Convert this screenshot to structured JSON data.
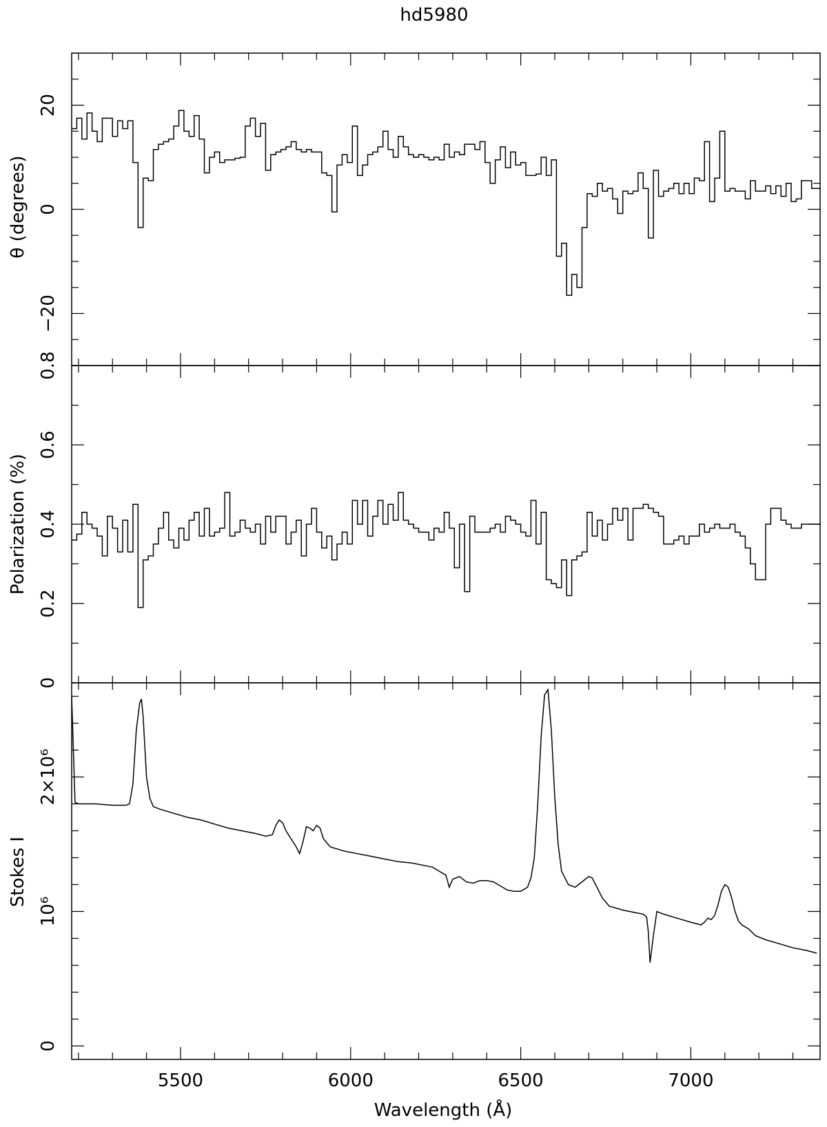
{
  "chart_data": {
    "type": "line",
    "title": "hd5980",
    "xlabel": "Wavelength (Å)",
    "xlim": [
      5180,
      7380
    ],
    "x_ticks": [
      5500,
      6000,
      6500,
      7000
    ],
    "x_tick_labels": [
      "5500",
      "6000",
      "6500",
      "7000"
    ],
    "panels": [
      {
        "name": "theta",
        "type": "step",
        "ylabel": "θ (degrees)",
        "ylim": [
          -30,
          30
        ],
        "y_ticks": [
          -20,
          0,
          20
        ],
        "y_tick_labels": [
          "−20",
          "0",
          "20"
        ],
        "series": [
          {
            "x": [
              5180,
              5195,
              5210,
              5225,
              5240,
              5255,
              5270,
              5285,
              5300,
              5315,
              5330,
              5345,
              5360,
              5375,
              5390,
              5405,
              5420,
              5435,
              5450,
              5465,
              5480,
              5495,
              5510,
              5525,
              5540,
              5555,
              5570,
              5585,
              5600,
              5615,
              5630,
              5645,
              5660,
              5675,
              5690,
              5705,
              5720,
              5735,
              5750,
              5765,
              5780,
              5795,
              5810,
              5825,
              5840,
              5855,
              5870,
              5885,
              5900,
              5915,
              5930,
              5945,
              5960,
              5975,
              5990,
              6005,
              6020,
              6035,
              6050,
              6065,
              6080,
              6095,
              6110,
              6125,
              6140,
              6155,
              6170,
              6185,
              6200,
              6215,
              6230,
              6245,
              6260,
              6275,
              6290,
              6305,
              6320,
              6335,
              6350,
              6365,
              6380,
              6395,
              6410,
              6425,
              6440,
              6455,
              6470,
              6485,
              6500,
              6515,
              6530,
              6545,
              6560,
              6575,
              6590,
              6605,
              6620,
              6635,
              6650,
              6665,
              6680,
              6695,
              6710,
              6725,
              6740,
              6755,
              6770,
              6785,
              6800,
              6815,
              6830,
              6845,
              6860,
              6875,
              6890,
              6905,
              6920,
              6935,
              6950,
              6965,
              6980,
              6995,
              7010,
              7025,
              7040,
              7055,
              7070,
              7085,
              7100,
              7115,
              7130,
              7145,
              7160,
              7175,
              7190,
              7205,
              7220,
              7235,
              7250,
              7265,
              7280,
              7295,
              7310,
              7325,
              7340,
              7355,
              7370
            ],
            "y": [
              15.5,
              17.5,
              13.5,
              18.5,
              15,
              13,
              17.5,
              17.5,
              14,
              17,
              15.5,
              17,
              9,
              -3.5,
              6,
              5.5,
              11.5,
              12.5,
              13,
              13.5,
              16,
              19,
              15,
              14,
              18,
              13.5,
              7,
              10,
              11,
              9,
              9.5,
              9.5,
              9.8,
              10,
              16,
              17.5,
              14,
              16.5,
              7.5,
              10.5,
              11,
              11.5,
              12,
              13,
              11.5,
              11,
              11.5,
              11,
              11,
              7,
              6.5,
              -0.5,
              8.5,
              10.5,
              9,
              16,
              6.5,
              8.5,
              10.5,
              11,
              12,
              15,
              11.5,
              10,
              14,
              12,
              10.5,
              10,
              10.5,
              10,
              9.5,
              10,
              9.5,
              12.5,
              10,
              11,
              10.5,
              12.5,
              12.5,
              11.5,
              13,
              9,
              5,
              9.5,
              12,
              8,
              11,
              8.5,
              9,
              6.5,
              6.5,
              6.8,
              10,
              6.5,
              9.5,
              -9,
              -6.5,
              -16.5,
              -12.5,
              -15,
              -3.5,
              3,
              2.5,
              5,
              3.5,
              4,
              2,
              -0.8,
              3.5,
              3,
              3.5,
              7,
              4,
              -5.5,
              7.5,
              2.5,
              3.5,
              4,
              5,
              3,
              5,
              3,
              6,
              5.5,
              13,
              1.5,
              6,
              15,
              3.5,
              4,
              3.5,
              3.5,
              2,
              5.5,
              3.5,
              3.5,
              4.5,
              3,
              4.5,
              2.5,
              5,
              1.5,
              2,
              5.5,
              5.5,
              4,
              4
            ]
          }
        ]
      },
      {
        "name": "polarization",
        "type": "step",
        "ylabel": "Polarization (%)",
        "ylim": [
          0,
          0.8
        ],
        "y_ticks": [
          0,
          0.2,
          0.4,
          0.6,
          0.8
        ],
        "y_tick_labels": [
          "0",
          "0.2",
          "0.4",
          "0.6",
          "0.8"
        ],
        "series": [
          {
            "x": [
              5180,
              5195,
              5210,
              5225,
              5240,
              5255,
              5270,
              5285,
              5300,
              5315,
              5330,
              5345,
              5360,
              5375,
              5390,
              5405,
              5420,
              5435,
              5450,
              5465,
              5480,
              5495,
              5510,
              5525,
              5540,
              5555,
              5570,
              5585,
              5600,
              5615,
              5630,
              5645,
              5660,
              5675,
              5690,
              5705,
              5720,
              5735,
              5750,
              5765,
              5780,
              5795,
              5810,
              5825,
              5840,
              5855,
              5870,
              5885,
              5900,
              5915,
              5930,
              5945,
              5960,
              5975,
              5990,
              6005,
              6020,
              6035,
              6050,
              6065,
              6080,
              6095,
              6110,
              6125,
              6140,
              6155,
              6170,
              6185,
              6200,
              6215,
              6230,
              6245,
              6260,
              6275,
              6290,
              6305,
              6320,
              6335,
              6350,
              6365,
              6380,
              6395,
              6410,
              6425,
              6440,
              6455,
              6470,
              6485,
              6500,
              6515,
              6530,
              6545,
              6560,
              6575,
              6590,
              6605,
              6620,
              6635,
              6650,
              6665,
              6680,
              6695,
              6710,
              6725,
              6740,
              6755,
              6770,
              6785,
              6800,
              6815,
              6830,
              6845,
              6860,
              6875,
              6890,
              6905,
              6920,
              6935,
              6950,
              6965,
              6980,
              6995,
              7010,
              7025,
              7040,
              7055,
              7070,
              7085,
              7100,
              7115,
              7130,
              7145,
              7160,
              7175,
              7190,
              7205,
              7220,
              7235,
              7250,
              7265,
              7280,
              7295,
              7310,
              7325,
              7340,
              7355,
              7370
            ],
            "y": [
              0.36,
              0.375,
              0.43,
              0.4,
              0.39,
              0.37,
              0.32,
              0.42,
              0.39,
              0.33,
              0.41,
              0.33,
              0.45,
              0.19,
              0.31,
              0.32,
              0.35,
              0.39,
              0.43,
              0.36,
              0.34,
              0.39,
              0.36,
              0.41,
              0.43,
              0.37,
              0.44,
              0.37,
              0.38,
              0.39,
              0.48,
              0.37,
              0.38,
              0.41,
              0.39,
              0.38,
              0.4,
              0.35,
              0.42,
              0.38,
              0.42,
              0.42,
              0.35,
              0.38,
              0.41,
              0.32,
              0.4,
              0.44,
              0.38,
              0.34,
              0.37,
              0.31,
              0.35,
              0.38,
              0.35,
              0.46,
              0.4,
              0.46,
              0.37,
              0.42,
              0.46,
              0.4,
              0.45,
              0.41,
              0.48,
              0.41,
              0.4,
              0.39,
              0.38,
              0.38,
              0.36,
              0.39,
              0.38,
              0.43,
              0.39,
              0.29,
              0.4,
              0.23,
              0.42,
              0.38,
              0.38,
              0.38,
              0.39,
              0.4,
              0.38,
              0.42,
              0.41,
              0.4,
              0.38,
              0.37,
              0.46,
              0.35,
              0.43,
              0.26,
              0.25,
              0.24,
              0.31,
              0.22,
              0.31,
              0.32,
              0.33,
              0.43,
              0.37,
              0.41,
              0.36,
              0.4,
              0.44,
              0.41,
              0.44,
              0.36,
              0.44,
              0.44,
              0.45,
              0.44,
              0.43,
              0.42,
              0.35,
              0.35,
              0.36,
              0.37,
              0.35,
              0.37,
              0.37,
              0.4,
              0.38,
              0.39,
              0.4,
              0.39,
              0.39,
              0.4,
              0.38,
              0.37,
              0.34,
              0.3,
              0.26,
              0.26,
              0.4,
              0.44,
              0.44,
              0.41,
              0.4,
              0.39,
              0.39,
              0.4,
              0.4,
              0.4,
              0.4
            ]
          }
        ]
      },
      {
        "name": "stokes_i",
        "type": "line",
        "ylabel": "Stokes I",
        "ylim": [
          -100000,
          2700000
        ],
        "y_ticks": [
          0,
          1000000,
          2000000
        ],
        "y_tick_labels": [
          "0",
          "10⁶",
          "2×10⁶"
        ],
        "series": [
          {
            "x": [
              5180,
              5190,
              5200,
              5250,
              5300,
              5340,
              5350,
              5360,
              5370,
              5380,
              5385,
              5390,
              5400,
              5410,
              5420,
              5440,
              5480,
              5520,
              5560,
              5600,
              5640,
              5680,
              5720,
              5750,
              5770,
              5780,
              5790,
              5800,
              5810,
              5820,
              5830,
              5840,
              5850,
              5860,
              5870,
              5880,
              5890,
              5900,
              5910,
              5920,
              5940,
              5980,
              6020,
              6060,
              6100,
              6140,
              6180,
              6220,
              6240,
              6260,
              6280,
              6290,
              6300,
              6320,
              6340,
              6360,
              6380,
              6400,
              6420,
              6440,
              6460,
              6480,
              6500,
              6520,
              6530,
              6540,
              6550,
              6560,
              6570,
              6580,
              6590,
              6600,
              6610,
              6620,
              6640,
              6660,
              6680,
              6700,
              6710,
              6720,
              6740,
              6760,
              6800,
              6840,
              6860,
              6870,
              6875,
              6880,
              6890,
              6900,
              6920,
              6960,
              7000,
              7030,
              7040,
              7050,
              7060,
              7070,
              7080,
              7090,
              7100,
              7110,
              7120,
              7130,
              7140,
              7150,
              7170,
              7190,
              7220,
              7260,
              7300,
              7340,
              7370
            ],
            "y": [
              2600000,
              1810000,
              1800000,
              1800000,
              1790000,
              1790000,
              1800000,
              1950000,
              2350000,
              2550000,
              2580000,
              2450000,
              2000000,
              1840000,
              1780000,
              1760000,
              1730000,
              1700000,
              1680000,
              1650000,
              1620000,
              1600000,
              1580000,
              1560000,
              1570000,
              1640000,
              1680000,
              1660000,
              1600000,
              1560000,
              1520000,
              1480000,
              1430000,
              1520000,
              1630000,
              1620000,
              1600000,
              1640000,
              1620000,
              1540000,
              1480000,
              1450000,
              1430000,
              1410000,
              1390000,
              1370000,
              1360000,
              1340000,
              1330000,
              1300000,
              1270000,
              1180000,
              1240000,
              1260000,
              1220000,
              1210000,
              1230000,
              1230000,
              1220000,
              1190000,
              1160000,
              1150000,
              1150000,
              1180000,
              1250000,
              1400000,
              1800000,
              2300000,
              2610000,
              2650000,
              2350000,
              1850000,
              1500000,
              1300000,
              1200000,
              1180000,
              1220000,
              1260000,
              1250000,
              1200000,
              1100000,
              1040000,
              1010000,
              990000,
              980000,
              960000,
              850000,
              620000,
              820000,
              1000000,
              980000,
              950000,
              920000,
              900000,
              920000,
              950000,
              940000,
              970000,
              1050000,
              1150000,
              1200000,
              1180000,
              1100000,
              1000000,
              930000,
              900000,
              870000,
              820000,
              790000,
              760000,
              730000,
              710000,
              690000
            ]
          }
        ]
      }
    ]
  }
}
